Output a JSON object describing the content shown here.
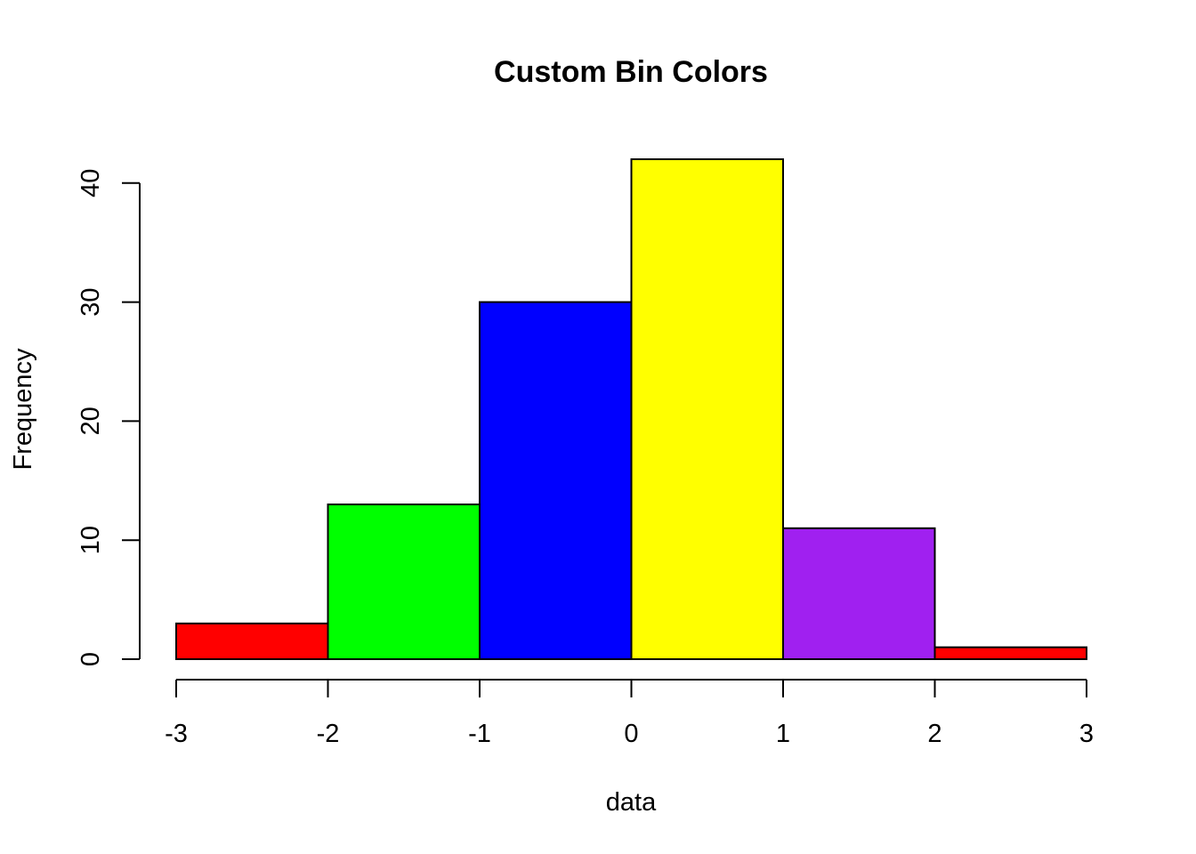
{
  "chart_data": {
    "type": "bar",
    "title": "Custom Bin Colors",
    "xlabel": "data",
    "ylabel": "Frequency",
    "bins": [
      {
        "from": -3,
        "to": -2,
        "count": 3,
        "color": "#FF0000"
      },
      {
        "from": -2,
        "to": -1,
        "count": 13,
        "color": "#00FF00"
      },
      {
        "from": -1,
        "to": 0,
        "count": 30,
        "color": "#0000FF"
      },
      {
        "from": 0,
        "to": 1,
        "count": 42,
        "color": "#FFFF00"
      },
      {
        "from": 1,
        "to": 2,
        "count": 11,
        "color": "#A020F0"
      },
      {
        "from": 2,
        "to": 3,
        "count": 1,
        "color": "#FF0000"
      }
    ],
    "xlim": [
      -3,
      3
    ],
    "ylim": [
      0,
      42
    ],
    "x_ticks": [
      "-3",
      "-2",
      "-1",
      "0",
      "1",
      "2",
      "3"
    ],
    "y_ticks": [
      "0",
      "10",
      "20",
      "30",
      "40"
    ],
    "grid": false,
    "legend": "none"
  }
}
